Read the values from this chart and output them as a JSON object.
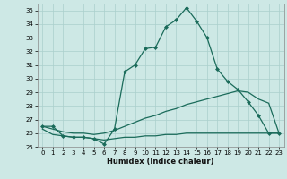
{
  "xlabel": "Humidex (Indice chaleur)",
  "ylabel": "",
  "background_color": "#cde8e5",
  "grid_color": "#aacfcc",
  "line_color": "#1a6b5a",
  "xlim": [
    -0.5,
    23.5
  ],
  "ylim": [
    25,
    35.5
  ],
  "yticks": [
    25,
    26,
    27,
    28,
    29,
    30,
    31,
    32,
    33,
    34,
    35
  ],
  "xticks": [
    0,
    1,
    2,
    3,
    4,
    5,
    6,
    7,
    8,
    9,
    10,
    11,
    12,
    13,
    14,
    15,
    16,
    17,
    18,
    19,
    20,
    21,
    22,
    23
  ],
  "line1_x": [
    0,
    1,
    2,
    3,
    4,
    5,
    6,
    7,
    8,
    9,
    10,
    11,
    12,
    13,
    14,
    15,
    16,
    17,
    18,
    19,
    20,
    21,
    22,
    23
  ],
  "line1_y": [
    26.5,
    26.5,
    25.8,
    25.7,
    25.7,
    25.6,
    25.2,
    26.3,
    30.5,
    31.0,
    32.2,
    32.3,
    33.8,
    34.3,
    35.2,
    34.2,
    33.0,
    30.7,
    29.8,
    29.2,
    28.3,
    27.3,
    26.0,
    26.0
  ],
  "line2_x": [
    0,
    1,
    2,
    3,
    4,
    5,
    6,
    7,
    8,
    9,
    10,
    11,
    12,
    13,
    14,
    15,
    16,
    17,
    18,
    19,
    20,
    21,
    22,
    23
  ],
  "line2_y": [
    26.5,
    26.3,
    26.1,
    26.0,
    26.0,
    25.9,
    26.0,
    26.2,
    26.5,
    26.8,
    27.1,
    27.3,
    27.6,
    27.8,
    28.1,
    28.3,
    28.5,
    28.7,
    28.9,
    29.1,
    29.0,
    28.5,
    28.2,
    26.0
  ],
  "line3_x": [
    0,
    1,
    2,
    3,
    4,
    5,
    6,
    7,
    8,
    9,
    10,
    11,
    12,
    13,
    14,
    15,
    16,
    17,
    18,
    19,
    20,
    21,
    22,
    23
  ],
  "line3_y": [
    26.3,
    25.9,
    25.8,
    25.7,
    25.7,
    25.6,
    25.5,
    25.6,
    25.7,
    25.7,
    25.8,
    25.8,
    25.9,
    25.9,
    26.0,
    26.0,
    26.0,
    26.0,
    26.0,
    26.0,
    26.0,
    26.0,
    26.0,
    26.0
  ]
}
